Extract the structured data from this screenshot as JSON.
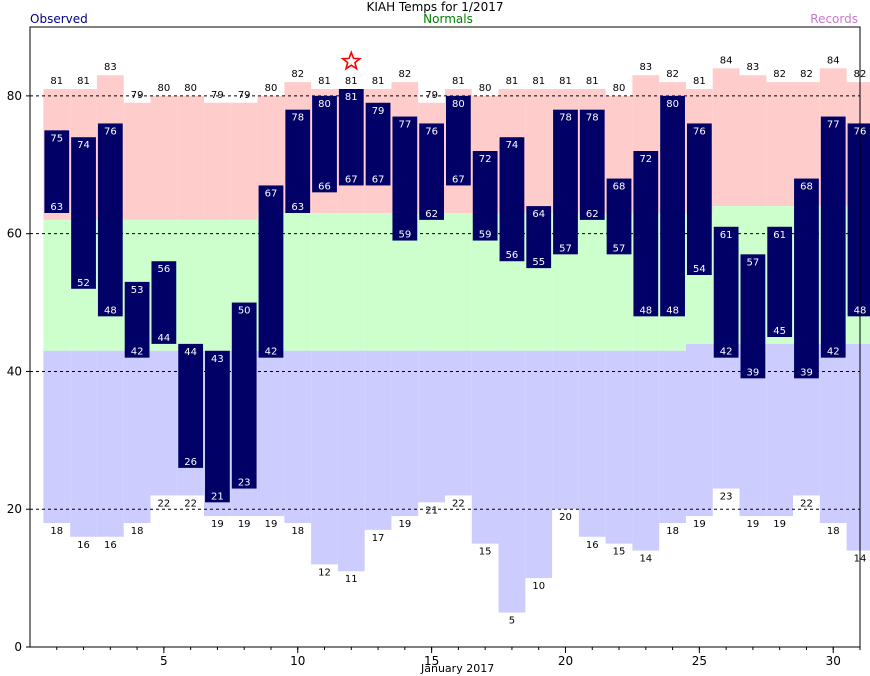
{
  "chart_data": {
    "type": "bar",
    "title": "KIAH Temps for 1/2017",
    "legend": {
      "observed": "Observed",
      "normals": "Normals",
      "records": "Records"
    },
    "xlabel": "January 2017",
    "ylim": [
      0,
      90
    ],
    "xlim": [
      0.5,
      31.5
    ],
    "yticks": [
      0,
      20,
      40,
      60,
      80
    ],
    "xticks": [
      5,
      10,
      15,
      20,
      25,
      30
    ],
    "days": [
      1,
      2,
      3,
      4,
      5,
      6,
      7,
      8,
      9,
      10,
      11,
      12,
      13,
      14,
      15,
      16,
      17,
      18,
      19,
      20,
      21,
      22,
      23,
      24,
      25,
      26,
      27,
      28,
      29,
      30,
      31
    ],
    "observed_high": [
      75,
      74,
      76,
      53,
      56,
      44,
      43,
      50,
      67,
      78,
      80,
      81,
      79,
      77,
      76,
      80,
      72,
      74,
      64,
      78,
      78,
      68,
      72,
      80,
      76,
      61,
      57,
      61,
      68,
      77,
      76
    ],
    "observed_low": [
      63,
      52,
      48,
      42,
      44,
      26,
      21,
      23,
      42,
      63,
      66,
      67,
      67,
      59,
      62,
      67,
      59,
      56,
      55,
      57,
      62,
      57,
      48,
      48,
      54,
      42,
      39,
      45,
      39,
      42,
      48
    ],
    "normal_high": [
      62,
      62,
      62,
      62,
      62,
      62,
      62,
      62,
      63,
      63,
      63,
      63,
      63,
      63,
      63,
      63,
      63,
      63,
      63,
      63,
      63,
      63,
      63,
      63,
      63,
      64,
      64,
      64,
      64,
      64,
      64
    ],
    "normal_low": [
      43,
      43,
      43,
      43,
      43,
      43,
      43,
      43,
      43,
      43,
      43,
      43,
      43,
      43,
      43,
      43,
      43,
      43,
      43,
      43,
      43,
      43,
      43,
      43,
      44,
      44,
      44,
      44,
      44,
      44,
      44
    ],
    "record_high": [
      81,
      81,
      83,
      79,
      80,
      80,
      79,
      79,
      80,
      82,
      81,
      81,
      81,
      82,
      79,
      81,
      80,
      81,
      81,
      81,
      81,
      80,
      83,
      82,
      81,
      84,
      83,
      82,
      82,
      84,
      82
    ],
    "record_low": [
      18,
      16,
      16,
      18,
      22,
      22,
      19,
      19,
      19,
      18,
      12,
      11,
      17,
      19,
      21,
      22,
      15,
      5,
      10,
      20,
      16,
      15,
      14,
      18,
      19,
      23,
      19,
      19,
      22,
      18,
      14
    ],
    "record_marker": {
      "day": 12,
      "value": 85,
      "symbol": "star"
    },
    "colors": {
      "observed_bar": "#000066",
      "record_band": "#ffcccc",
      "normal_band": "#ccffcc",
      "low_band": "#ccccff",
      "marker": "#ff0000",
      "grid": "#000000"
    },
    "grid": "dashed horizontal"
  }
}
